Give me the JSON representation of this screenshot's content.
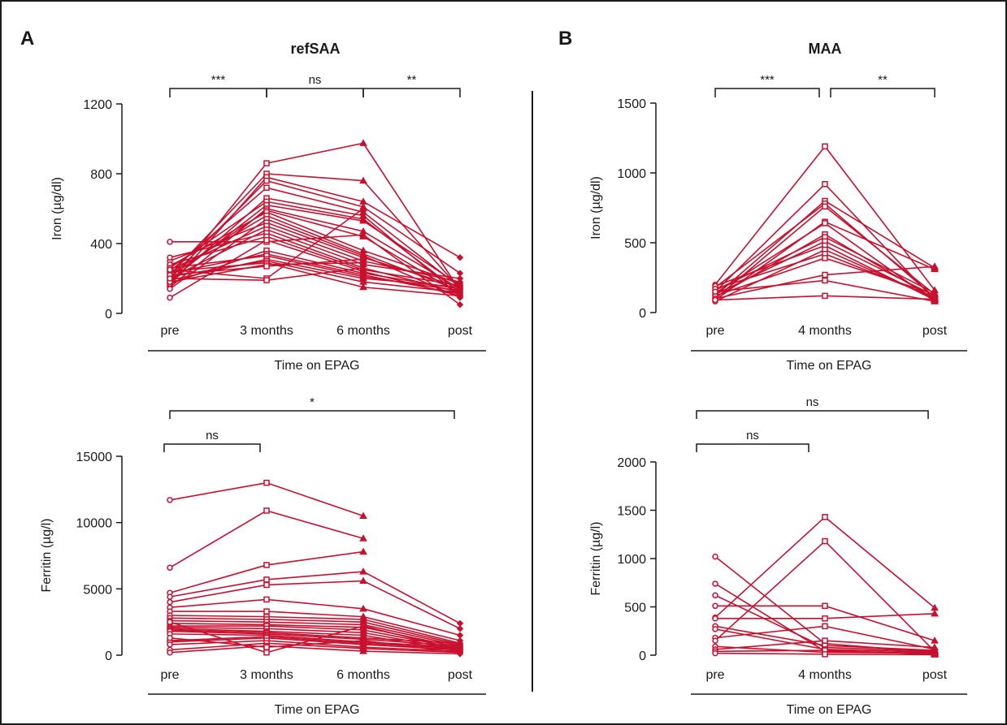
{
  "colors": {
    "series": "#c8102e",
    "axis": "#1a1a1a",
    "border": "#1a1a1a"
  },
  "chart_data": [
    {
      "panel": "A",
      "title": "refSAA",
      "type": "line",
      "categories": [
        "pre",
        "3 months",
        "6 months",
        "post"
      ],
      "xlabel": "Time on EPAG",
      "ylabel": "Iron (µg/dl)",
      "ylim": [
        0,
        1200
      ],
      "yticks": [
        0,
        400,
        800,
        1200
      ],
      "grid": false,
      "significance": [
        {
          "from": 0,
          "to": 1,
          "label": "***"
        },
        {
          "from": 1,
          "to": 2,
          "label": "ns"
        },
        {
          "from": 2,
          "to": 3,
          "label": "**"
        }
      ],
      "lines": [
        [
          170,
          860,
          975,
          130
        ],
        [
          220,
          800,
          760,
          140
        ],
        [
          160,
          780,
          640,
          320
        ],
        [
          200,
          760,
          610,
          230
        ],
        [
          240,
          720,
          580,
          150
        ],
        [
          180,
          660,
          560,
          100
        ],
        [
          260,
          640,
          540,
          120
        ],
        [
          190,
          620,
          530,
          160
        ],
        [
          150,
          600,
          470,
          140
        ],
        [
          410,
          410,
          450,
          50
        ],
        [
          210,
          590,
          440,
          110
        ],
        [
          270,
          580,
          360,
          170
        ],
        [
          230,
          560,
          340,
          130
        ],
        [
          140,
          540,
          330,
          90
        ],
        [
          300,
          520,
          320,
          150
        ],
        [
          250,
          500,
          300,
          180
        ],
        [
          200,
          480,
          280,
          200
        ],
        [
          320,
          460,
          260,
          120
        ],
        [
          280,
          440,
          250,
          160
        ],
        [
          90,
          420,
          240,
          100
        ],
        [
          170,
          360,
          230,
          140
        ],
        [
          230,
          340,
          220,
          110
        ],
        [
          260,
          330,
          210,
          130
        ],
        [
          190,
          310,
          200,
          150
        ],
        [
          210,
          300,
          180,
          120
        ],
        [
          240,
          290,
          150,
          100
        ],
        [
          180,
          280,
          290,
          null
        ],
        [
          220,
          270,
          310,
          null
        ],
        [
          250,
          200,
          600,
          null
        ],
        [
          200,
          190,
          260,
          null
        ]
      ]
    },
    {
      "panel": "B",
      "title": "MAA",
      "type": "line",
      "categories": [
        "pre",
        "4 months",
        "post"
      ],
      "xlabel": "Time on EPAG",
      "ylabel": "Iron (µg/dl)",
      "ylim": [
        0,
        1500
      ],
      "yticks": [
        0,
        500,
        1000,
        1500
      ],
      "grid": false,
      "significance": [
        {
          "from": 0,
          "to": 1,
          "label": "***"
        },
        {
          "from": 1,
          "to": 2,
          "label": "**"
        }
      ],
      "lines": [
        [
          200,
          1190,
          160
        ],
        [
          150,
          920,
          90
        ],
        [
          120,
          800,
          320
        ],
        [
          180,
          780,
          110
        ],
        [
          100,
          760,
          130
        ],
        [
          90,
          650,
          310
        ],
        [
          140,
          640,
          80
        ],
        [
          110,
          560,
          100
        ],
        [
          160,
          540,
          140
        ],
        [
          130,
          510,
          120
        ],
        [
          190,
          480,
          90
        ],
        [
          80,
          450,
          100
        ],
        [
          170,
          420,
          110
        ],
        [
          120,
          390,
          130
        ],
        [
          100,
          270,
          330
        ],
        [
          150,
          230,
          80
        ],
        [
          90,
          120,
          95
        ]
      ]
    },
    {
      "panel": "A",
      "type": "line",
      "categories": [
        "pre",
        "3 months",
        "6 months",
        "post"
      ],
      "xlabel": "Time on EPAG",
      "ylabel": "Ferritin (µg/l)",
      "ylim": [
        0,
        15000
      ],
      "yticks": [
        0,
        5000,
        10000,
        15000
      ],
      "grid": false,
      "significance": [
        {
          "from": 0,
          "to": 1,
          "label": "ns"
        },
        {
          "from": 0,
          "to": 3,
          "label": "*"
        }
      ],
      "lines": [
        [
          11700,
          13000,
          10500,
          null
        ],
        [
          6600,
          10900,
          8800,
          null
        ],
        [
          4700,
          6800,
          7800,
          null
        ],
        [
          4400,
          5700,
          6300,
          2400
        ],
        [
          4000,
          5300,
          5600,
          2000
        ],
        [
          3600,
          4200,
          3500,
          1500
        ],
        [
          3300,
          3300,
          2900,
          1100
        ],
        [
          3000,
          2900,
          2700,
          900
        ],
        [
          2800,
          2700,
          2500,
          800
        ],
        [
          2600,
          2500,
          2300,
          700
        ],
        [
          2400,
          2300,
          2100,
          600
        ],
        [
          2200,
          2200,
          1900,
          500
        ],
        [
          2100,
          2000,
          1700,
          400
        ],
        [
          2000,
          1800,
          1500,
          300
        ],
        [
          1900,
          1700,
          1300,
          900
        ],
        [
          1800,
          1600,
          1200,
          700
        ],
        [
          1600,
          1500,
          1000,
          600
        ],
        [
          1100,
          1400,
          900,
          500
        ],
        [
          1000,
          1300,
          800,
          400
        ],
        [
          800,
          1100,
          600,
          300
        ],
        [
          400,
          900,
          500,
          200
        ],
        [
          200,
          700,
          300,
          100
        ],
        [
          2500,
          200,
          2200,
          400
        ],
        [
          1300,
          600,
          1100,
          200
        ]
      ]
    },
    {
      "panel": "B",
      "type": "line",
      "categories": [
        "pre",
        "4 months",
        "post"
      ],
      "xlabel": "Time on EPAG",
      "ylabel": "Ferritin (µg/l)",
      "ylim": [
        0,
        2000
      ],
      "yticks": [
        0,
        500,
        1000,
        1500,
        2000
      ],
      "grid": false,
      "significance": [
        {
          "from": 0,
          "to": 1,
          "label": "ns"
        },
        {
          "from": 0,
          "to": 2,
          "label": "ns"
        }
      ],
      "lines": [
        [
          1020,
          120,
          30
        ],
        [
          740,
          40,
          20
        ],
        [
          620,
          80,
          40
        ],
        [
          510,
          510,
          150
        ],
        [
          390,
          1430,
          490
        ],
        [
          380,
          380,
          430
        ],
        [
          300,
          100,
          50
        ],
        [
          270,
          60,
          30
        ],
        [
          180,
          300,
          60
        ],
        [
          150,
          1180,
          40
        ],
        [
          90,
          30,
          20
        ],
        [
          60,
          150,
          80
        ],
        [
          40,
          50,
          10
        ],
        [
          20,
          10,
          5
        ]
      ]
    }
  ],
  "panel_letters": {
    "a": "A",
    "b": "B"
  },
  "panel_titles": {
    "a": "refSAA",
    "b": "MAA"
  }
}
